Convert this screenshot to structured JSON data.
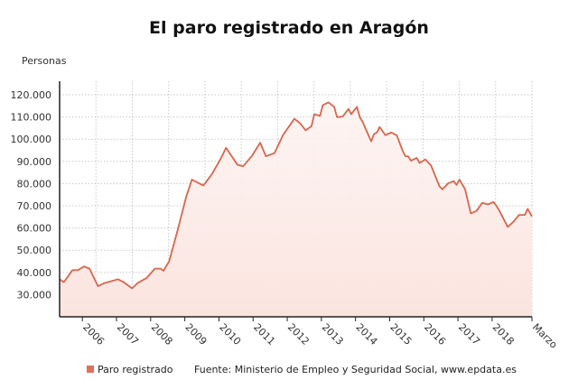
{
  "chart_data": {
    "type": "area",
    "title": "El paro registrado en Aragón",
    "ylabel": "Personas",
    "xlabel": "",
    "ylim": [
      20000,
      125000
    ],
    "yticks": [
      30000,
      40000,
      50000,
      60000,
      70000,
      80000,
      90000,
      100000,
      110000,
      120000
    ],
    "ytick_labels": [
      "30.000",
      "40.000",
      "50.000",
      "60.000",
      "70.000",
      "80.000",
      "90.000",
      "100.000",
      "110.000",
      "120.000"
    ],
    "xlim": [
      "2005-05",
      "2019-03"
    ],
    "xticks": [
      "2006-01",
      "2007-01",
      "2008-01",
      "2009-01",
      "2010-01",
      "2011-01",
      "2012-01",
      "2013-01",
      "2014-01",
      "2015-01",
      "2016-01",
      "2017-01",
      "2018-01",
      "2019-03"
    ],
    "xtick_labels": [
      "2006",
      "2007",
      "2008",
      "2009",
      "2010",
      "2011",
      "2012",
      "2013",
      "2014",
      "2015",
      "2016",
      "2017",
      "2018",
      "Marzo"
    ],
    "grid": true,
    "legend_position": "bottom",
    "line_color": "#d9654c",
    "fill_color": "#fdeeeb",
    "series": [
      {
        "name": "Paro registrado",
        "x": [
          "2005-05",
          "2005-06",
          "2005-09",
          "2005-11",
          "2006-01",
          "2006-03",
          "2006-06",
          "2006-08",
          "2007-01",
          "2007-03",
          "2007-06",
          "2007-08",
          "2007-11",
          "2008-02",
          "2008-04",
          "2008-05",
          "2008-07",
          "2008-10",
          "2009-01",
          "2009-03",
          "2009-07",
          "2009-10",
          "2010-01",
          "2010-03",
          "2010-07",
          "2010-09",
          "2010-12",
          "2011-03",
          "2011-05",
          "2011-08",
          "2011-11",
          "2012-03",
          "2012-05",
          "2012-07",
          "2012-09",
          "2012-10",
          "2012-12",
          "2013-01",
          "2013-03",
          "2013-05",
          "2013-06",
          "2013-08",
          "2013-10",
          "2013-11",
          "2014-01",
          "2014-02",
          "2014-03",
          "2014-06",
          "2014-07",
          "2014-08",
          "2014-09",
          "2014-11",
          "2015-01",
          "2015-03",
          "2015-05",
          "2015-06",
          "2015-07",
          "2015-08",
          "2015-10",
          "2015-11",
          "2016-01",
          "2016-03",
          "2016-06",
          "2016-07",
          "2016-09",
          "2016-11",
          "2016-12",
          "2017-01",
          "2017-03",
          "2017-05",
          "2017-07",
          "2017-09",
          "2017-11",
          "2018-01",
          "2018-02",
          "2018-03",
          "2018-06",
          "2018-08",
          "2018-10",
          "2018-12",
          "2019-01",
          "2019-03"
        ],
        "y": [
          36900,
          35600,
          41000,
          41000,
          42700,
          41700,
          33800,
          35100,
          36900,
          35600,
          32800,
          35300,
          37400,
          41700,
          41700,
          40700,
          45000,
          59200,
          74100,
          81800,
          79100,
          84200,
          90900,
          96100,
          88500,
          87800,
          92300,
          98400,
          92300,
          93700,
          101800,
          109200,
          107200,
          104000,
          105800,
          111200,
          110500,
          115300,
          116600,
          114600,
          109900,
          110200,
          113600,
          111200,
          114600,
          109900,
          107800,
          99000,
          102300,
          103000,
          105500,
          101800,
          103000,
          101800,
          95000,
          92300,
          92300,
          90300,
          91600,
          89300,
          90900,
          88200,
          78800,
          77400,
          80100,
          81100,
          79400,
          81800,
          77400,
          66600,
          67700,
          71300,
          70600,
          71700,
          70000,
          67900,
          60500,
          62800,
          65900,
          65900,
          68600,
          65200
        ]
      }
    ],
    "source": "Fuente: Ministerio de Empleo y Seguridad Social, www.epdata.es"
  }
}
